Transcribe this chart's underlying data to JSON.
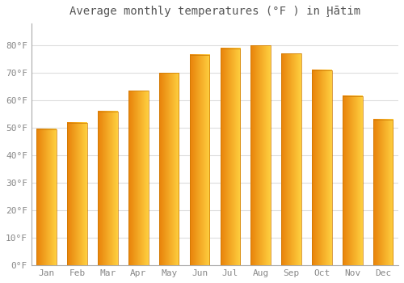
{
  "title": "Average monthly temperatures (°F ) in Ḩātim",
  "months": [
    "Jan",
    "Feb",
    "Mar",
    "Apr",
    "May",
    "Jun",
    "Jul",
    "Aug",
    "Sep",
    "Oct",
    "Nov",
    "Dec"
  ],
  "values": [
    49.5,
    51.8,
    56.0,
    63.5,
    70.0,
    76.5,
    79.0,
    80.0,
    77.0,
    71.0,
    61.5,
    53.0
  ],
  "bar_color_left": "#E8820A",
  "bar_color_right": "#FFD040",
  "ylim": [
    0,
    88
  ],
  "yticks": [
    0,
    10,
    20,
    30,
    40,
    50,
    60,
    70,
    80
  ],
  "ytick_labels": [
    "0°F",
    "10°F",
    "20°F",
    "30°F",
    "40°F",
    "50°F",
    "60°F",
    "70°F",
    "80°F"
  ],
  "background_color": "#ffffff",
  "grid_color": "#dddddd",
  "title_fontsize": 10,
  "tick_fontsize": 8,
  "tick_color": "#888888",
  "title_color": "#555555"
}
